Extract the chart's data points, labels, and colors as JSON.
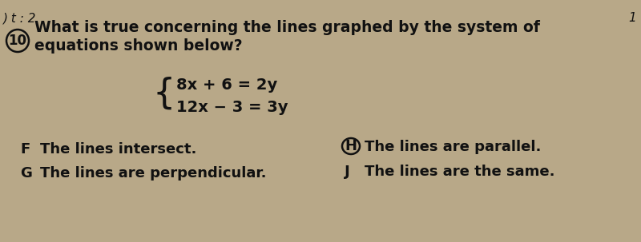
{
  "bg_color": "#b8a888",
  "text_color": "#111111",
  "top_left_text": ") t : 2",
  "top_right_text": "1",
  "question_number": "10",
  "question_text_line1": "What is true concerning the lines graphed by the system of",
  "question_text_line2": "equations shown below?",
  "eq1": "8x + 6 = 2y",
  "eq2": "12x − 3 = 3y",
  "option_F_label": "F",
  "option_F": "The lines intersect.",
  "option_G_label": "G",
  "option_G": "The lines are perpendicular.",
  "option_H_label": "H",
  "option_H": "The lines are parallel.",
  "option_J_label": "J",
  "option_J": "The lines are the same.",
  "correct_option": "H",
  "font_size_top": 11,
  "font_size_question": 13.5,
  "font_size_eq": 14,
  "font_size_options": 13
}
